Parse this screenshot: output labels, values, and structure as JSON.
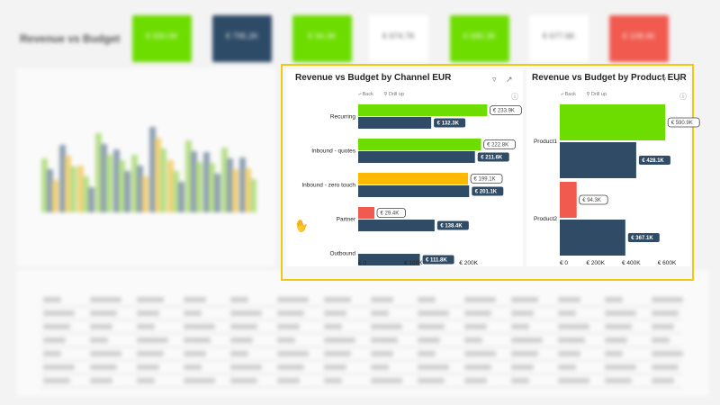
{
  "dashboard": {
    "title": "Revenue vs Budget",
    "kpis": [
      {
        "value": "€ 590.9K",
        "color": "#6ddd00"
      },
      {
        "value": "€ 795.2K",
        "color": "#2d4a66"
      },
      {
        "value": "€ 94.3K",
        "color": "#6ddd00"
      },
      {
        "value": "€ 674.7K",
        "color": "#ffffff"
      },
      {
        "value": "€ 685.3K",
        "color": "#6ddd00"
      },
      {
        "value": "€ 677.6K",
        "color": "#ffffff"
      },
      {
        "value": "€ 108.4K",
        "color": "#f05a4f"
      }
    ]
  },
  "colors": {
    "green": "#6ddd00",
    "yellow": "#fcb900",
    "red": "#f05a4f",
    "navy": "#2f4b66",
    "highlight": "#f2c811"
  },
  "toolbar": {
    "back": "Back",
    "drill": "Drill up"
  },
  "chart_data": [
    {
      "type": "bar",
      "title": "Revenue vs Budget by Channel EUR",
      "orientation": "horizontal",
      "categories": [
        "Recurring",
        "Inbound - quotes",
        "Inbound - zero touch",
        "Partner",
        "Outbound"
      ],
      "series": [
        {
          "values": [
            233.9,
            222.8,
            199.1,
            29.4,
            null
          ],
          "labels": [
            "€ 233.9K",
            "€ 222.8K",
            "€ 199.1K",
            "€ 29.4K",
            ""
          ],
          "colors": [
            "#6ddd00",
            "#6ddd00",
            "#fcb900",
            "#f05a4f",
            "#6ddd00"
          ]
        },
        {
          "values": [
            132.3,
            211.6,
            201.1,
            138.4,
            111.8
          ],
          "labels": [
            "€ 132.3K",
            "€ 211.6K",
            "€ 201.1K",
            "€ 138.4K",
            "€ 111.8K"
          ],
          "colors": [
            "#2f4b66",
            "#2f4b66",
            "#2f4b66",
            "#2f4b66",
            "#2f4b66"
          ]
        }
      ],
      "xlim": [
        0,
        230
      ],
      "xticks": [
        0,
        100,
        200
      ],
      "xtick_labels": [
        "€ 0",
        "€ 100K",
        "€ 200K"
      ],
      "grid": false
    },
    {
      "type": "bar",
      "title": "Revenue vs Budget by Product EUR",
      "orientation": "horizontal",
      "categories": [
        "Product1",
        "Product2"
      ],
      "series": [
        {
          "values": [
            590.9,
            94.3
          ],
          "labels": [
            "€ 590.9K",
            "€ 94.3K"
          ],
          "colors": [
            "#6ddd00",
            "#f05a4f"
          ]
        },
        {
          "values": [
            428.1,
            367.1
          ],
          "labels": [
            "€ 428.1K",
            "€ 367.1K"
          ],
          "colors": [
            "#2f4b66",
            "#2f4b66"
          ]
        }
      ],
      "xlim": [
        0,
        600
      ],
      "xticks": [
        0,
        200,
        400,
        600
      ],
      "xtick_labels": [
        "€ 0",
        "€ 200K",
        "€ 400K",
        "€ 600K"
      ],
      "grid": false
    }
  ]
}
